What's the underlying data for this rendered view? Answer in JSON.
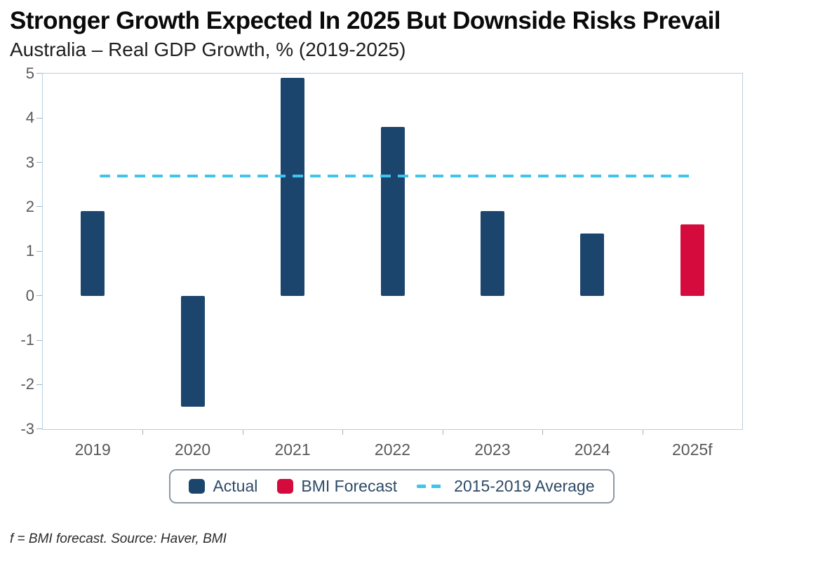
{
  "header": {
    "title": "Stronger Growth Expected In 2025 But Downside Risks Prevail",
    "subtitle": "Australia – Real GDP Growth, % (2019-2025)"
  },
  "chart_data": {
    "type": "bar",
    "title": "Stronger Growth Expected In 2025 But Downside Risks Prevail",
    "subtitle": "Australia – Real GDP Growth, % (2019-2025)",
    "categories": [
      "2019",
      "2020",
      "2021",
      "2022",
      "2023",
      "2024",
      "2025f"
    ],
    "values": [
      1.9,
      -2.5,
      4.9,
      3.8,
      1.9,
      1.4,
      1.6
    ],
    "bar_colors": [
      "#1c456e",
      "#1c456e",
      "#1c456e",
      "#1c456e",
      "#1c456e",
      "#1c456e",
      "#d40b3c"
    ],
    "series": [
      {
        "name": "Actual",
        "categories": [
          "2019",
          "2020",
          "2021",
          "2022",
          "2023",
          "2024"
        ],
        "values": [
          1.9,
          -2.5,
          4.9,
          3.8,
          1.9,
          1.4
        ]
      },
      {
        "name": "BMI Forecast",
        "categories": [
          "2025f"
        ],
        "values": [
          1.6
        ]
      }
    ],
    "reference_line": {
      "name": "2015-2019 Average",
      "value": 2.7,
      "style": "dashed",
      "color": "#3fc4f0"
    },
    "ylim": [
      -3,
      5
    ],
    "yticks": [
      5,
      4,
      3,
      2,
      1,
      0,
      -1,
      -2,
      -3
    ],
    "grid": false,
    "legend_position": "bottom",
    "xlabel": "",
    "ylabel": ""
  },
  "legend": {
    "items": [
      {
        "label": "Actual",
        "marker": "square",
        "color": "#1c456e"
      },
      {
        "label": "BMI Forecast",
        "marker": "square",
        "color": "#d40b3c"
      },
      {
        "label": "2015-2019 Average",
        "marker": "dashed-line",
        "color": "#3fc4f0"
      }
    ]
  },
  "footnote": "f = BMI forecast. Source: Haver, BMI"
}
